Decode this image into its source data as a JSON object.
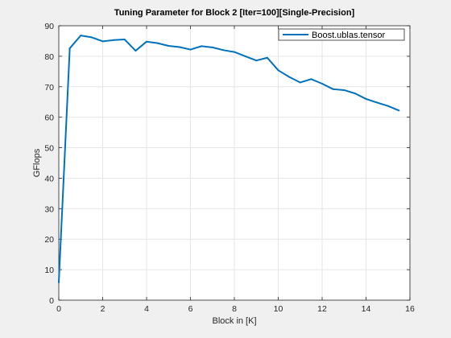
{
  "chart_data": {
    "type": "line",
    "title": "Tuning Parameter for Block 2 [Iter=100][Single-Precision]",
    "xlabel": "Block in [K]",
    "ylabel": "GFlops",
    "xlim": [
      0,
      16
    ],
    "ylim": [
      0,
      90
    ],
    "xticks": [
      0,
      2,
      4,
      6,
      8,
      10,
      12,
      14,
      16
    ],
    "yticks": [
      0,
      10,
      20,
      30,
      40,
      50,
      60,
      70,
      80,
      90
    ],
    "grid": true,
    "legend_position": "top-right",
    "series": [
      {
        "name": "Boost.ublas.tensor",
        "color": "#0072bd",
        "x": [
          0,
          0.5,
          1,
          1.5,
          2,
          2.5,
          3,
          3.5,
          4,
          4.5,
          5,
          5.5,
          6,
          6.5,
          7,
          7.5,
          8,
          8.5,
          9,
          9.5,
          10,
          10.5,
          11,
          11.5,
          12,
          12.5,
          13,
          13.5,
          14,
          14.5,
          15,
          15.5
        ],
        "y": [
          5.8,
          82.6,
          86.8,
          86.2,
          84.9,
          85.3,
          85.5,
          81.8,
          84.8,
          84.3,
          83.4,
          83.0,
          82.2,
          83.3,
          82.9,
          82.0,
          81.4,
          80.0,
          78.6,
          79.5,
          75.4,
          73.2,
          71.4,
          72.5,
          71.0,
          69.2,
          68.9,
          67.8,
          66.0,
          64.8,
          63.7,
          62.2
        ]
      }
    ]
  }
}
